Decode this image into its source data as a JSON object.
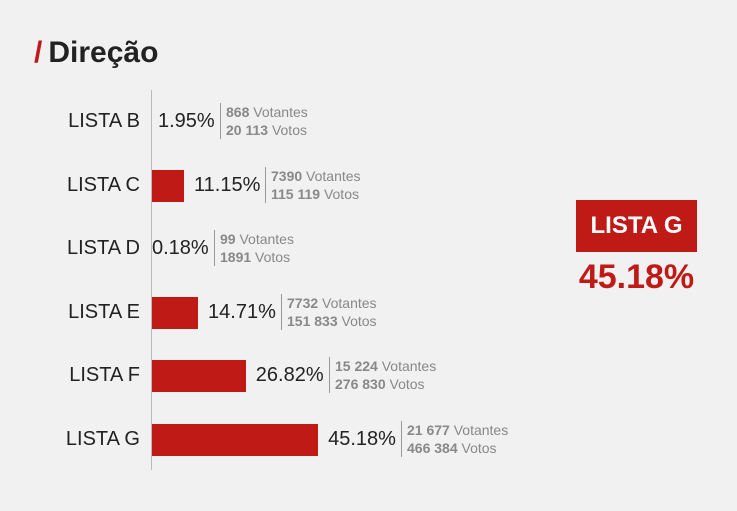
{
  "title": "Direção",
  "title_prefix": "/",
  "winner": {
    "label": "LISTA G",
    "percent": "45.18%"
  },
  "chart_data": {
    "type": "bar",
    "orientation": "horizontal",
    "title": "Direção",
    "categories": [
      "LISTA B",
      "LISTA C",
      "LISTA D",
      "LISTA E",
      "LISTA F",
      "LISTA G"
    ],
    "values": [
      1.95,
      11.15,
      0.18,
      14.71,
      26.82,
      45.18
    ],
    "percent_labels": [
      "1.95%",
      "11.15%",
      "0.18%",
      "14.71%",
      "26.82%",
      "45.18%"
    ],
    "votantes": [
      "868",
      "7390",
      "99",
      "7732",
      "15 224",
      "21 677"
    ],
    "votos": [
      "20 113",
      "115 119",
      "1891",
      "151 833",
      "276 830",
      "466 384"
    ],
    "votantes_label": "Votantes",
    "votos_label": "Votos",
    "bar_color": "#bf1a16"
  }
}
